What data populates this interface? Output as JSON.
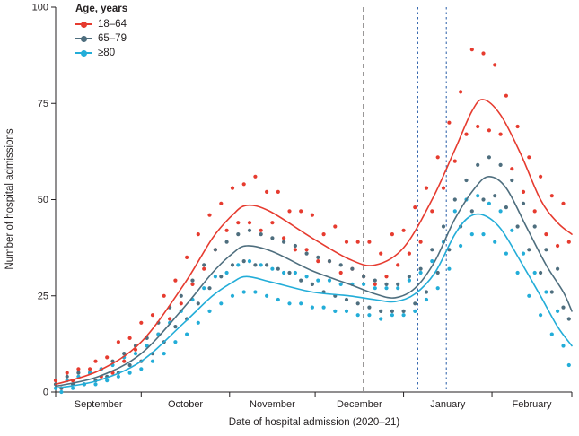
{
  "chart_data": {
    "type": "scatter",
    "title": "",
    "xlabel": "Date of hospital admission (2020–21)",
    "ylabel": "Number of hospital admissions",
    "ylim": [
      0,
      100
    ],
    "yticks": [
      0,
      25,
      50,
      75,
      100
    ],
    "grid": false,
    "ink_color": "#231f20",
    "x_axis": {
      "total_days": 181,
      "month_tick_days": [
        0,
        30,
        61,
        91,
        122,
        153,
        181
      ],
      "month_labels": [
        "September",
        "October",
        "November",
        "December",
        "January",
        "February"
      ]
    },
    "legend": {
      "title": "Age, years",
      "position": "top-left",
      "entries": [
        {
          "label": "18–64",
          "color": "#e63b2f"
        },
        {
          "label": "65–79",
          "color": "#4e6e7e"
        },
        {
          "label": "≥80",
          "color": "#23add8"
        }
      ]
    },
    "reference_lines": [
      {
        "day": 108,
        "color": "#231f20",
        "dash": "5,4"
      },
      {
        "day": 127,
        "color": "#3a6bb0",
        "dash": "2.5,3"
      },
      {
        "day": 137,
        "color": "#3a6bb0",
        "dash": "2.5,3"
      }
    ],
    "trend": {
      "series": [
        {
          "name": "18–64",
          "color": "#e63b2f",
          "points": [
            [
              0,
              2
            ],
            [
              15,
              5.5
            ],
            [
              30,
              13
            ],
            [
              45,
              28
            ],
            [
              55,
              40
            ],
            [
              62,
              46
            ],
            [
              67,
              48.5
            ],
            [
              75,
              47
            ],
            [
              90,
              40
            ],
            [
              103,
              34.5
            ],
            [
              112,
              33
            ],
            [
              122,
              37.5
            ],
            [
              132,
              50
            ],
            [
              140,
              63
            ],
            [
              146,
              73
            ],
            [
              150,
              76
            ],
            [
              156,
              72
            ],
            [
              163,
              62
            ],
            [
              170,
              50
            ],
            [
              176,
              44
            ],
            [
              181,
              41
            ]
          ]
        },
        {
          "name": "65–79",
          "color": "#4e6e7e",
          "points": [
            [
              0,
              1.5
            ],
            [
              15,
              4
            ],
            [
              30,
              10
            ],
            [
              45,
              22
            ],
            [
              55,
              31
            ],
            [
              62,
              36
            ],
            [
              67,
              38
            ],
            [
              76,
              36.5
            ],
            [
              90,
              31.5
            ],
            [
              103,
              28
            ],
            [
              112,
              25.5
            ],
            [
              119,
              24.5
            ],
            [
              126,
              27
            ],
            [
              133,
              34
            ],
            [
              140,
              45
            ],
            [
              147,
              53
            ],
            [
              152,
              56
            ],
            [
              158,
              53
            ],
            [
              165,
              43
            ],
            [
              172,
              33
            ],
            [
              178,
              26
            ],
            [
              181,
              21
            ]
          ]
        },
        {
          "name": "≥80",
          "color": "#23add8",
          "points": [
            [
              0,
              1
            ],
            [
              15,
              3
            ],
            [
              30,
              8
            ],
            [
              45,
              18
            ],
            [
              55,
              25
            ],
            [
              62,
              28.5
            ],
            [
              67,
              30
            ],
            [
              76,
              28.5
            ],
            [
              90,
              26
            ],
            [
              103,
              25
            ],
            [
              112,
              24
            ],
            [
              119,
              23.5
            ],
            [
              126,
              25.5
            ],
            [
              133,
              31
            ],
            [
              140,
              41
            ],
            [
              145,
              45.5
            ],
            [
              150,
              46
            ],
            [
              156,
              42.5
            ],
            [
              163,
              34
            ],
            [
              170,
              25
            ],
            [
              176,
              17
            ],
            [
              181,
              12
            ]
          ]
        }
      ]
    },
    "scatter": {
      "start_day": 0,
      "day_step": 2,
      "series": [
        {
          "name": "18–64",
          "color": "#e63b2f",
          "values": [
            3,
            1,
            5,
            3,
            6,
            2,
            6,
            8,
            4,
            9,
            5,
            13,
            8,
            14,
            11,
            18,
            12,
            20,
            15,
            25,
            19,
            29,
            23,
            35,
            28,
            41,
            32,
            46,
            37,
            49,
            42,
            53,
            44,
            54,
            44,
            56,
            42,
            52,
            44,
            52,
            40,
            47,
            37,
            47,
            37,
            46,
            34,
            41,
            34,
            43,
            31,
            39,
            32,
            39,
            30,
            39,
            28,
            36,
            30,
            41,
            33,
            42,
            36,
            48,
            39,
            53,
            47,
            61,
            53,
            70,
            60,
            78,
            67,
            89,
            69,
            88,
            68,
            85,
            67,
            77,
            58,
            69,
            52,
            61,
            47,
            56,
            41,
            51,
            38,
            49,
            39
          ]
        },
        {
          "name": "65–79",
          "color": "#4e6e7e",
          "values": [
            2,
            1,
            4,
            2,
            5,
            2,
            5,
            3,
            6,
            4,
            8,
            5,
            10,
            7,
            12,
            8,
            14,
            10,
            18,
            13,
            22,
            17,
            25,
            19,
            29,
            23,
            33,
            27,
            37,
            30,
            39,
            33,
            41,
            34,
            42,
            33,
            41,
            33,
            40,
            32,
            39,
            31,
            38,
            29,
            36,
            28,
            35,
            26,
            34,
            25,
            33,
            24,
            32,
            23,
            30,
            22,
            29,
            21,
            28,
            21,
            28,
            21,
            30,
            23,
            32,
            26,
            37,
            31,
            43,
            37,
            50,
            43,
            55,
            47,
            59,
            50,
            61,
            51,
            59,
            48,
            55,
            43,
            49,
            37,
            43,
            31,
            37,
            26,
            32,
            22,
            19
          ]
        },
        {
          "name": "≥80",
          "color": "#23add8",
          "values": [
            1,
            0,
            3,
            1,
            4,
            2,
            5,
            2,
            6,
            3,
            7,
            4,
            9,
            5,
            10,
            6,
            12,
            8,
            15,
            10,
            18,
            13,
            21,
            15,
            24,
            18,
            27,
            21,
            30,
            23,
            31,
            25,
            33,
            26,
            34,
            26,
            33,
            25,
            32,
            24,
            31,
            23,
            31,
            23,
            30,
            22,
            29,
            22,
            29,
            21,
            28,
            21,
            28,
            20,
            28,
            20,
            27,
            19,
            27,
            20,
            27,
            20,
            29,
            21,
            31,
            24,
            34,
            27,
            39,
            32,
            47,
            38,
            50,
            41,
            51,
            41,
            49,
            39,
            47,
            36,
            42,
            31,
            36,
            25,
            31,
            20,
            26,
            15,
            21,
            12,
            7
          ]
        }
      ]
    }
  }
}
